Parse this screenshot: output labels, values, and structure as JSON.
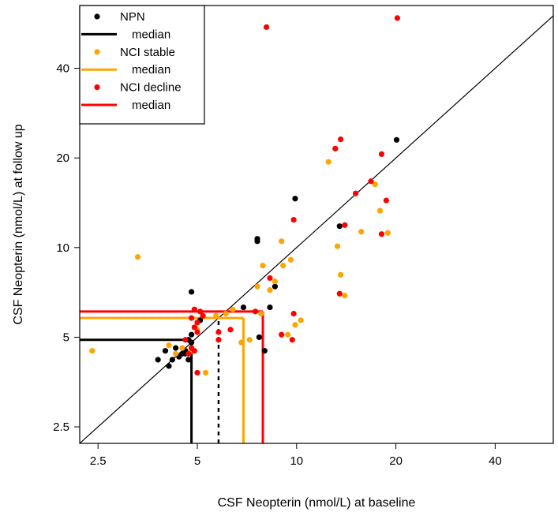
{
  "chart_data": {
    "type": "scatter",
    "xlabel": "CSF Neopterin (nmol/L) at baseline",
    "ylabel": "CSF Neopterin (nmol/L) at follow up",
    "x_scale": "log",
    "y_scale": "log",
    "xlim": [
      2.2,
      60
    ],
    "ylim": [
      2.2,
      65
    ],
    "x_ticks": [
      2.5,
      5,
      10,
      20,
      40
    ],
    "x_tick_labels": [
      "2.5",
      "5",
      "10",
      "20",
      "40"
    ],
    "y_ticks": [
      2.5,
      5,
      10,
      20,
      40
    ],
    "y_tick_labels": [
      "2.5",
      "5",
      "10",
      "20",
      "40"
    ],
    "grid": false,
    "identity_line": true,
    "legend_position": "top-left",
    "legend": [
      {
        "label": "NPN",
        "kind": "point",
        "color": "#000000"
      },
      {
        "label": "median",
        "kind": "line",
        "color": "#000000"
      },
      {
        "label": "NCI stable",
        "kind": "point",
        "color": "#FFA500"
      },
      {
        "label": "median",
        "kind": "line",
        "color": "#FFA500"
      },
      {
        "label": "NCI decline",
        "kind": "point",
        "color": "#FF0000"
      },
      {
        "label": "median",
        "kind": "line",
        "color": "#FF0000"
      }
    ],
    "series": [
      {
        "name": "NPN",
        "color": "#000000",
        "median": {
          "x": 4.8,
          "y": 4.9,
          "style": "solid"
        },
        "median_alt": {
          "x": 5.8,
          "y": 5.8,
          "style": "dashed"
        },
        "points": [
          [
            20.1,
            23.0
          ],
          [
            13.5,
            11.8
          ],
          [
            9.9,
            14.6
          ],
          [
            7.6,
            10.5
          ],
          [
            7.6,
            10.7
          ],
          [
            8.6,
            7.4
          ],
          [
            8.3,
            6.3
          ],
          [
            6.9,
            6.3
          ],
          [
            7.7,
            5.0
          ],
          [
            8.0,
            4.5
          ],
          [
            4.8,
            7.1
          ],
          [
            5.1,
            5.7
          ],
          [
            4.8,
            5.1
          ],
          [
            4.7,
            4.9
          ],
          [
            4.8,
            4.8
          ],
          [
            4.6,
            4.5
          ],
          [
            4.5,
            4.4
          ],
          [
            4.4,
            4.3
          ],
          [
            4.3,
            4.6
          ],
          [
            4.2,
            4.2
          ],
          [
            4.0,
            4.5
          ],
          [
            3.8,
            4.2
          ],
          [
            4.1,
            4.0
          ],
          [
            4.7,
            4.2
          ],
          [
            4.6,
            4.4
          ]
        ]
      },
      {
        "name": "NCI stable",
        "color": "#FFA500",
        "median": {
          "x": 6.9,
          "y": 5.8,
          "style": "solid"
        },
        "points": [
          [
            2.4,
            4.5
          ],
          [
            3.3,
            9.3
          ],
          [
            4.1,
            4.7
          ],
          [
            4.3,
            4.4
          ],
          [
            4.5,
            4.6
          ],
          [
            4.8,
            4.5
          ],
          [
            5.0,
            5.3
          ],
          [
            5.3,
            3.8
          ],
          [
            5.7,
            5.9
          ],
          [
            6.1,
            6.0
          ],
          [
            6.4,
            6.2
          ],
          [
            6.8,
            4.8
          ],
          [
            7.2,
            4.9
          ],
          [
            7.6,
            7.4
          ],
          [
            7.8,
            6.0
          ],
          [
            7.9,
            8.7
          ],
          [
            8.3,
            7.2
          ],
          [
            8.6,
            7.7
          ],
          [
            9.0,
            10.5
          ],
          [
            9.1,
            8.7
          ],
          [
            9.4,
            5.1
          ],
          [
            9.6,
            9.1
          ],
          [
            9.9,
            5.5
          ],
          [
            10.3,
            5.7
          ],
          [
            12.5,
            19.4
          ],
          [
            13.3,
            10.1
          ],
          [
            13.6,
            8.1
          ],
          [
            14.0,
            6.9
          ],
          [
            15.7,
            11.3
          ],
          [
            17.3,
            16.3
          ],
          [
            17.9,
            13.3
          ],
          [
            18.9,
            11.2
          ]
        ]
      },
      {
        "name": "NCI decline",
        "color": "#FF0000",
        "median": {
          "x": 7.9,
          "y": 6.1,
          "style": "solid"
        },
        "points": [
          [
            8.1,
            55.0
          ],
          [
            20.2,
            59.0
          ],
          [
            13.6,
            23.1
          ],
          [
            13.1,
            21.5
          ],
          [
            18.1,
            20.6
          ],
          [
            16.8,
            16.7
          ],
          [
            15.1,
            15.2
          ],
          [
            18.7,
            14.4
          ],
          [
            9.8,
            12.4
          ],
          [
            14.0,
            11.9
          ],
          [
            18.1,
            11.1
          ],
          [
            8.3,
            7.9
          ],
          [
            13.5,
            7.0
          ],
          [
            9.8,
            6.0
          ],
          [
            7.5,
            6.1
          ],
          [
            9.0,
            5.1
          ],
          [
            9.7,
            4.9
          ],
          [
            6.3,
            5.3
          ],
          [
            5.8,
            4.9
          ],
          [
            5.8,
            5.2
          ],
          [
            4.9,
            6.2
          ],
          [
            5.1,
            6.1
          ],
          [
            4.8,
            5.8
          ],
          [
            5.0,
            5.6
          ],
          [
            4.9,
            5.4
          ],
          [
            5.2,
            5.9
          ],
          [
            5.0,
            5.2
          ],
          [
            4.6,
            4.9
          ],
          [
            4.8,
            4.6
          ],
          [
            4.9,
            4.5
          ],
          [
            4.7,
            4.4
          ],
          [
            5.0,
            3.8
          ]
        ]
      }
    ]
  }
}
